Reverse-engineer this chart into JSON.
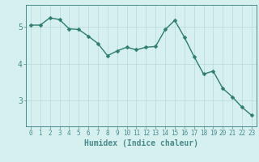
{
  "x": [
    0,
    1,
    2,
    3,
    4,
    5,
    6,
    7,
    8,
    9,
    10,
    11,
    12,
    13,
    14,
    15,
    16,
    17,
    18,
    19,
    20,
    21,
    22,
    23
  ],
  "y": [
    5.05,
    5.05,
    5.25,
    5.2,
    4.95,
    4.93,
    4.75,
    4.55,
    4.22,
    4.35,
    4.45,
    4.38,
    4.45,
    4.47,
    4.93,
    5.18,
    4.72,
    4.2,
    3.72,
    3.8,
    3.33,
    3.1,
    2.82,
    2.6
  ],
  "line_color": "#2e7d6e",
  "marker": "D",
  "marker_size": 2.5,
  "bg_color": "#d6f0f0",
  "grid_color": "#b8d8d8",
  "axis_color": "#4a8a8a",
  "xlabel": "Humidex (Indice chaleur)",
  "xlabel_fontsize": 7,
  "tick_fontsize": 5.5,
  "ytick_fontsize": 7,
  "yticks": [
    3,
    4,
    5
  ],
  "ylim": [
    2.3,
    5.6
  ],
  "xlim": [
    -0.5,
    23.5
  ],
  "linewidth": 1.0
}
